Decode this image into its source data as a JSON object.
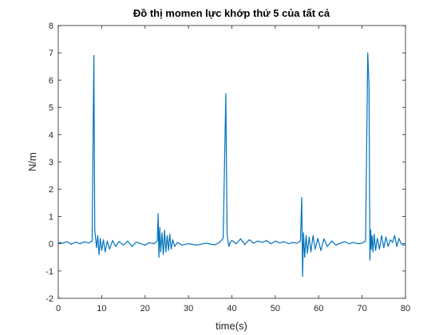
{
  "chart_data": {
    "type": "line",
    "title": "Đồ thị momen lực khớp thứ 5 của tất cả",
    "xlabel": "time(s)",
    "ylabel": "N/m",
    "xlim": [
      0,
      80
    ],
    "ylim": [
      -2,
      8
    ],
    "xticks": [
      "0",
      "10",
      "20",
      "30",
      "40",
      "50",
      "60",
      "70",
      "80"
    ],
    "yticks": [
      "-2",
      "-1",
      "0",
      "1",
      "2",
      "3",
      "4",
      "5",
      "6",
      "7",
      "8"
    ],
    "grid": false,
    "line_color": "#0072BD",
    "series": [
      {
        "x": [
          0,
          1,
          2,
          3,
          4,
          5,
          6,
          7,
          7.8,
          8.2,
          8.4,
          8.6,
          8.8,
          9.1,
          9.4,
          9.7,
          10.0,
          10.4,
          10.8,
          11.3,
          11.8,
          12.5,
          13.2,
          14,
          15,
          16,
          17,
          18,
          19,
          20,
          21,
          22,
          22.8,
          23.0,
          23.2,
          23.4,
          23.6,
          23.9,
          24.2,
          24.5,
          24.8,
          25.1,
          25.4,
          25.7,
          26.0,
          26.4,
          26.8,
          27.5,
          28.5,
          30,
          32,
          34,
          36,
          37,
          38,
          38.6,
          38.9,
          39.1,
          39.3,
          39.6,
          40,
          41,
          42,
          43,
          44,
          45,
          46,
          47,
          48,
          49,
          50,
          51,
          52,
          53,
          54,
          55,
          55.8,
          56.1,
          56.3,
          56.5,
          56.8,
          57.1,
          57.4,
          57.8,
          58.2,
          58.7,
          59.2,
          59.8,
          60.5,
          61.2,
          62,
          63,
          64,
          65,
          66,
          67,
          68,
          69,
          70,
          70.8,
          71.3,
          71.6,
          71.8,
          72.0,
          72.1,
          72.3,
          72.5,
          72.8,
          73.1,
          73.5,
          74,
          74.5,
          75,
          75.5,
          76,
          76.5,
          77,
          77.5,
          78,
          78.5,
          79,
          79.5,
          80
        ],
        "y": [
          0.05,
          0.02,
          0.08,
          -0.02,
          0.06,
          0.0,
          0.07,
          0.03,
          0.1,
          6.9,
          0.5,
          0.2,
          -0.15,
          0.3,
          -0.4,
          0.2,
          -0.25,
          0.15,
          -0.3,
          0.1,
          -0.2,
          0.12,
          -0.1,
          0.08,
          -0.05,
          0.1,
          -0.1,
          0.06,
          0.0,
          -0.05,
          0.04,
          0.0,
          0.1,
          1.1,
          -0.5,
          0.6,
          -0.3,
          0.4,
          -0.4,
          0.5,
          -0.3,
          0.3,
          -0.25,
          0.35,
          -0.2,
          0.15,
          -0.1,
          0.05,
          -0.05,
          0.0,
          -0.05,
          0.02,
          -0.04,
          0.03,
          0.2,
          5.5,
          0.4,
          0.1,
          -0.1,
          0.05,
          0.12,
          0.0,
          0.18,
          -0.03,
          0.15,
          0.02,
          0.1,
          0.05,
          0.12,
          0.0,
          0.1,
          0.03,
          0.08,
          0.0,
          0.05,
          0.02,
          0.1,
          1.7,
          -1.2,
          0.4,
          -0.5,
          0.3,
          -0.35,
          0.25,
          -0.3,
          0.3,
          -0.2,
          0.2,
          -0.25,
          0.18,
          -0.1,
          0.1,
          -0.05,
          0.02,
          0.08,
          0.0,
          0.05,
          0.0,
          0.02,
          0.1,
          7.0,
          5.8,
          -0.6,
          0.5,
          -0.2,
          0.3,
          -0.3,
          0.35,
          -0.25,
          0.2,
          -0.2,
          0.3,
          -0.15,
          0.25,
          -0.1,
          0.15,
          0.05,
          0.3,
          -0.1,
          0.2,
          0.0,
          -0.05,
          -0.05
        ]
      }
    ]
  }
}
